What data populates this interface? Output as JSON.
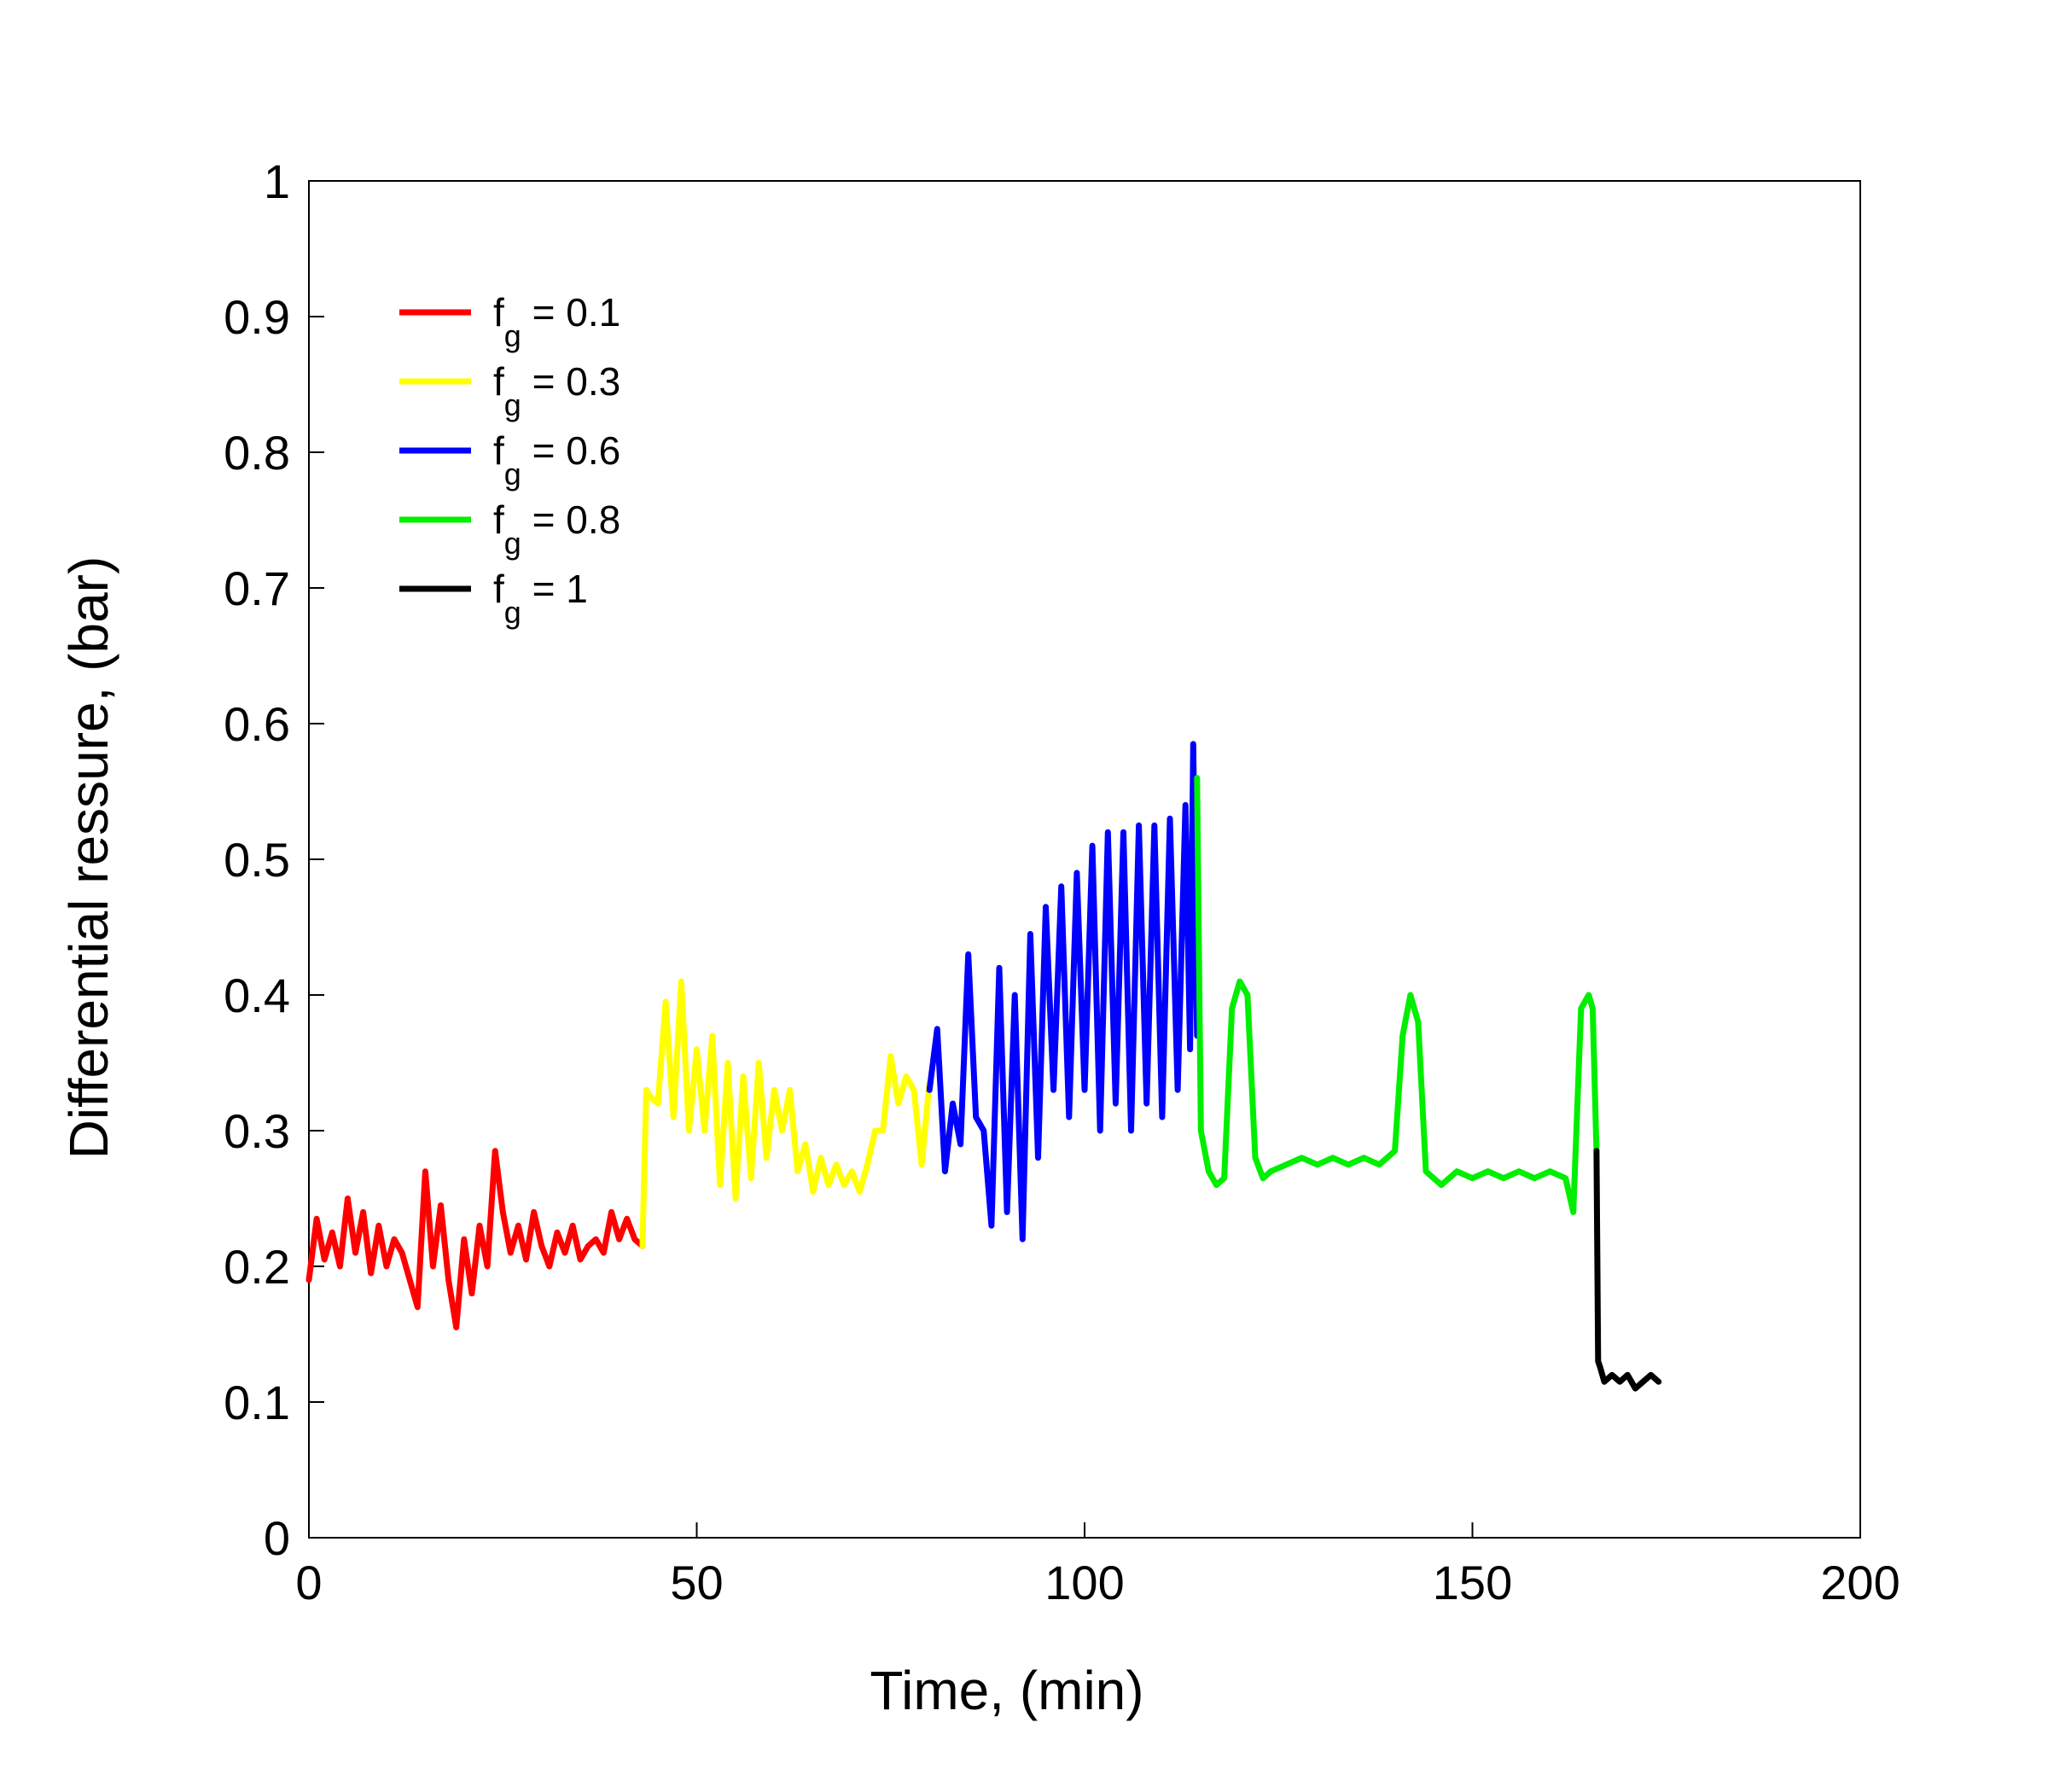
{
  "chart_data": {
    "type": "line",
    "xlabel": "Time, (min)",
    "ylabel": "Differential ressure, (bar)",
    "xlim": [
      0,
      200
    ],
    "ylim": [
      0,
      1
    ],
    "xticks": [
      0,
      50,
      100,
      150,
      200
    ],
    "xtick_labels": [
      "0",
      "50",
      "100",
      "150",
      "200"
    ],
    "yticks": [
      0,
      0.1,
      0.2,
      0.3,
      0.4,
      0.5,
      0.6,
      0.7,
      0.8,
      0.9,
      1
    ],
    "ytick_labels": [
      "0",
      "0.1",
      "0.2",
      "0.3",
      "0.4",
      "0.5",
      "0.6",
      "0.7",
      "0.8",
      "0.9",
      "1"
    ],
    "grid": false,
    "legend_position": "top-left",
    "series": [
      {
        "name": "f_g = 0.1",
        "legend": {
          "main": "f",
          "sub": "g",
          "rest": " = 0.1"
        },
        "color": "#ff0000",
        "x": [
          0,
          1,
          2,
          3,
          4,
          5,
          6,
          7,
          8,
          9,
          10,
          11,
          12,
          13,
          14,
          15,
          16,
          17,
          18,
          19,
          20,
          21,
          22,
          23,
          24,
          25,
          26,
          27,
          28,
          29,
          30,
          31,
          32,
          33,
          34,
          35,
          36,
          37,
          38,
          39,
          40,
          41,
          42,
          43
        ],
        "y": [
          0.19,
          0.235,
          0.205,
          0.225,
          0.2,
          0.25,
          0.21,
          0.24,
          0.195,
          0.23,
          0.2,
          0.22,
          0.21,
          0.19,
          0.17,
          0.27,
          0.2,
          0.245,
          0.19,
          0.155,
          0.22,
          0.18,
          0.23,
          0.2,
          0.285,
          0.24,
          0.21,
          0.23,
          0.205,
          0.24,
          0.215,
          0.2,
          0.225,
          0.21,
          0.23,
          0.205,
          0.215,
          0.22,
          0.21,
          0.24,
          0.22,
          0.235,
          0.22,
          0.215
        ]
      },
      {
        "name": "f_g = 0.3",
        "legend": {
          "main": "f",
          "sub": "g",
          "rest": " = 0.3"
        },
        "color": "#ffff00",
        "x": [
          43,
          43.5,
          44,
          45,
          46,
          47,
          48,
          49,
          50,
          51,
          52,
          53,
          54,
          55,
          56,
          57,
          58,
          59,
          60,
          61,
          62,
          63,
          64,
          65,
          66,
          67,
          68,
          69,
          70,
          71,
          72,
          73,
          74,
          75,
          76,
          77,
          78,
          79,
          80
        ],
        "y": [
          0.215,
          0.33,
          0.325,
          0.32,
          0.395,
          0.31,
          0.41,
          0.3,
          0.36,
          0.3,
          0.37,
          0.26,
          0.35,
          0.25,
          0.34,
          0.265,
          0.35,
          0.28,
          0.33,
          0.3,
          0.33,
          0.27,
          0.29,
          0.255,
          0.28,
          0.26,
          0.275,
          0.26,
          0.27,
          0.255,
          0.275,
          0.3,
          0.3,
          0.355,
          0.32,
          0.34,
          0.33,
          0.275,
          0.335
        ]
      },
      {
        "name": "f_g = 0.6",
        "legend": {
          "main": "f",
          "sub": "g",
          "rest": " = 0.6"
        },
        "color": "#0000ff",
        "x": [
          80,
          81,
          82,
          83,
          84,
          85,
          86,
          87,
          88,
          89,
          90,
          91,
          92,
          93,
          94,
          95,
          96,
          97,
          98,
          99,
          100,
          101,
          102,
          103,
          104,
          105,
          106,
          107,
          108,
          109,
          110,
          111,
          112,
          113,
          113.6,
          114,
          114.5
        ],
        "y": [
          0.33,
          0.375,
          0.27,
          0.32,
          0.29,
          0.43,
          0.31,
          0.3,
          0.23,
          0.42,
          0.24,
          0.4,
          0.22,
          0.445,
          0.28,
          0.465,
          0.33,
          0.48,
          0.31,
          0.49,
          0.33,
          0.51,
          0.3,
          0.52,
          0.32,
          0.52,
          0.3,
          0.525,
          0.32,
          0.525,
          0.31,
          0.53,
          0.33,
          0.54,
          0.36,
          0.585,
          0.37
        ]
      },
      {
        "name": "f_g = 0.8",
        "legend": {
          "main": "f",
          "sub": "g",
          "rest": " = 0.8"
        },
        "color": "#00ee00",
        "x": [
          114.5,
          115,
          116,
          117,
          118,
          119,
          120,
          121,
          122,
          123,
          124,
          126,
          128,
          130,
          132,
          134,
          136,
          138,
          140,
          141,
          142,
          143,
          144,
          146,
          148,
          150,
          152,
          154,
          156,
          158,
          160,
          162,
          163,
          164,
          165,
          165.5,
          166
        ],
        "y": [
          0.56,
          0.3,
          0.27,
          0.26,
          0.265,
          0.39,
          0.41,
          0.4,
          0.28,
          0.265,
          0.27,
          0.275,
          0.28,
          0.275,
          0.28,
          0.275,
          0.28,
          0.275,
          0.285,
          0.37,
          0.4,
          0.38,
          0.27,
          0.26,
          0.27,
          0.265,
          0.27,
          0.265,
          0.27,
          0.265,
          0.27,
          0.265,
          0.24,
          0.39,
          0.4,
          0.39,
          0.285
        ]
      },
      {
        "name": "f_g = 1",
        "legend": {
          "main": "f",
          "sub": "g",
          "rest": " = 1"
        },
        "color": "#000000",
        "x": [
          166,
          166.2,
          166.5,
          167,
          168,
          169,
          170,
          171,
          172,
          173,
          174
        ],
        "y": [
          0.285,
          0.13,
          0.125,
          0.115,
          0.12,
          0.115,
          0.12,
          0.11,
          0.115,
          0.12,
          0.115
        ]
      }
    ]
  }
}
